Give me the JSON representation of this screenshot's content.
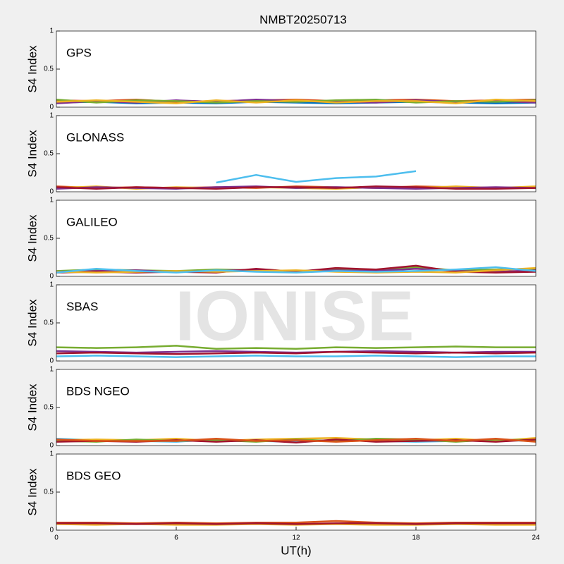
{
  "title": "NMBT20250713",
  "xlabel": "UT(h)",
  "watermark": "IONISE",
  "chart_data": [
    {
      "type": "line",
      "annotation": "GPS",
      "ylabel": "S4 Index",
      "xlim": [
        0,
        24
      ],
      "ylim": [
        0,
        1
      ],
      "yticks": [
        0,
        0.5,
        1
      ],
      "x": [
        0,
        2,
        4,
        6,
        8,
        10,
        12,
        14,
        16,
        18,
        20,
        22,
        24
      ],
      "series": [
        {
          "color": "#0072BD",
          "values": [
            0.06,
            0.07,
            0.05,
            0.06,
            0.05,
            0.07,
            0.06,
            0.05,
            0.06,
            0.07,
            0.06,
            0.05,
            0.06
          ]
        },
        {
          "color": "#D95319",
          "values": [
            0.09,
            0.08,
            0.1,
            0.07,
            0.08,
            0.09,
            0.1,
            0.08,
            0.09,
            0.1,
            0.08,
            0.09,
            0.1
          ]
        },
        {
          "color": "#7E2F8E",
          "values": [
            0.05,
            0.08,
            0.06,
            0.09,
            0.07,
            0.1,
            0.08,
            0.07,
            0.06,
            0.09,
            0.07,
            0.08,
            0.06
          ]
        },
        {
          "color": "#77AC30",
          "values": [
            0.1,
            0.06,
            0.09,
            0.08,
            0.06,
            0.08,
            0.07,
            0.09,
            0.1,
            0.06,
            0.08,
            0.07,
            0.09
          ]
        },
        {
          "color": "#EDB120",
          "values": [
            0.07,
            0.09,
            0.07,
            0.05,
            0.09,
            0.06,
            0.09,
            0.06,
            0.08,
            0.08,
            0.05,
            0.1,
            0.08
          ]
        }
      ]
    },
    {
      "type": "line",
      "annotation": "GLONASS",
      "ylabel": "S4 Index",
      "xlim": [
        0,
        24
      ],
      "ylim": [
        0,
        1
      ],
      "yticks": [
        0,
        0.5,
        1
      ],
      "x": [
        0,
        2,
        4,
        6,
        8,
        10,
        12,
        14,
        16,
        18,
        20,
        22,
        24
      ],
      "series": [
        {
          "color": "#4DBEEE",
          "values": [
            null,
            null,
            null,
            null,
            0.12,
            0.22,
            0.13,
            0.18,
            0.2,
            0.27,
            null,
            null,
            0.06
          ]
        },
        {
          "color": "#D95319",
          "values": [
            0.07,
            0.05,
            0.06,
            0.05,
            0.06,
            0.05,
            0.07,
            0.06,
            0.05,
            0.07,
            0.06,
            0.05,
            0.06
          ]
        },
        {
          "color": "#EDB120",
          "values": [
            0.05,
            0.07,
            0.04,
            0.06,
            0.05,
            0.06,
            0.05,
            0.04,
            0.06,
            0.05,
            0.07,
            0.05,
            0.07
          ]
        },
        {
          "color": "#7E2F8E",
          "values": [
            0.04,
            0.06,
            0.05,
            0.04,
            0.06,
            0.07,
            0.05,
            0.06,
            0.05,
            0.04,
            0.05,
            0.06,
            0.05
          ]
        },
        {
          "color": "#A2142F",
          "values": [
            0.06,
            0.04,
            0.06,
            0.05,
            0.04,
            0.06,
            0.06,
            0.05,
            0.07,
            0.06,
            0.04,
            0.04,
            0.05
          ]
        }
      ]
    },
    {
      "type": "line",
      "annotation": "GALILEO",
      "ylabel": "S4 Index",
      "xlim": [
        0,
        24
      ],
      "ylim": [
        0,
        1
      ],
      "yticks": [
        0,
        0.5,
        1
      ],
      "x": [
        0,
        2,
        4,
        6,
        8,
        10,
        12,
        14,
        16,
        18,
        20,
        22,
        24
      ],
      "series": [
        {
          "color": "#77AC30",
          "values": [
            0.07,
            0.09,
            0.08,
            0.07,
            0.09,
            0.08,
            0.07,
            0.09,
            0.08,
            0.12,
            0.08,
            0.09,
            0.1
          ]
        },
        {
          "color": "#7E2F8E",
          "values": [
            0.06,
            0.07,
            0.08,
            0.06,
            0.07,
            0.09,
            0.06,
            0.08,
            0.07,
            0.1,
            0.07,
            0.06,
            0.08
          ]
        },
        {
          "color": "#A2142F",
          "values": [
            0.05,
            0.06,
            0.05,
            0.06,
            0.05,
            0.1,
            0.06,
            0.11,
            0.09,
            0.14,
            0.06,
            0.05,
            0.06
          ]
        },
        {
          "color": "#EDB120",
          "values": [
            0.06,
            0.05,
            0.06,
            0.07,
            0.06,
            0.07,
            0.08,
            0.06,
            0.05,
            0.06,
            0.05,
            0.08,
            0.11
          ]
        },
        {
          "color": "#4DBEEE",
          "values": [
            0.05,
            0.1,
            0.07,
            0.05,
            0.08,
            0.06,
            0.05,
            0.07,
            0.06,
            0.07,
            0.09,
            0.12,
            0.07
          ]
        }
      ]
    },
    {
      "type": "line",
      "annotation": "SBAS",
      "ylabel": "S4 Index",
      "xlim": [
        0,
        24
      ],
      "ylim": [
        0,
        1
      ],
      "yticks": [
        0,
        0.5,
        1
      ],
      "x": [
        0,
        2,
        4,
        6,
        8,
        10,
        12,
        14,
        16,
        18,
        20,
        22,
        24
      ],
      "series": [
        {
          "color": "#4DBEEE",
          "values": [
            0.06,
            0.07,
            0.06,
            0.05,
            0.06,
            0.07,
            0.06,
            0.06,
            0.07,
            0.06,
            0.05,
            0.06,
            0.06
          ]
        },
        {
          "color": "#77AC30",
          "values": [
            0.18,
            0.17,
            0.18,
            0.2,
            0.16,
            0.17,
            0.16,
            0.18,
            0.17,
            0.18,
            0.19,
            0.18,
            0.18
          ]
        },
        {
          "color": "#7E2F8E",
          "values": [
            0.13,
            0.12,
            0.11,
            0.12,
            0.13,
            0.12,
            0.11,
            0.12,
            0.13,
            0.12,
            0.11,
            0.12,
            0.12
          ]
        },
        {
          "color": "#A2142F",
          "values": [
            0.1,
            0.11,
            0.1,
            0.09,
            0.1,
            0.11,
            0.1,
            0.12,
            0.11,
            0.1,
            0.11,
            0.1,
            0.11
          ]
        }
      ]
    },
    {
      "type": "line",
      "annotation": "BDS NGEO",
      "ylabel": "S4 Index",
      "xlim": [
        0,
        24
      ],
      "ylim": [
        0,
        1
      ],
      "yticks": [
        0,
        0.5,
        1
      ],
      "x": [
        0,
        2,
        4,
        6,
        8,
        10,
        12,
        14,
        16,
        18,
        20,
        22,
        24
      ],
      "series": [
        {
          "color": "#4DBEEE",
          "values": [
            0.09,
            0.07,
            0.06,
            0.05,
            0.08,
            0.06,
            0.05,
            0.07,
            0.06,
            0.05,
            0.06,
            0.07,
            0.06
          ]
        },
        {
          "color": "#EDB120",
          "values": [
            0.07,
            0.08,
            0.07,
            0.09,
            0.06,
            0.08,
            0.09,
            0.1,
            0.08,
            0.07,
            0.09,
            0.06,
            0.1
          ]
        },
        {
          "color": "#77AC30",
          "values": [
            0.06,
            0.05,
            0.08,
            0.06,
            0.07,
            0.05,
            0.08,
            0.06,
            0.09,
            0.08,
            0.05,
            0.08,
            0.07
          ]
        },
        {
          "color": "#A2142F",
          "values": [
            0.05,
            0.06,
            0.05,
            0.07,
            0.05,
            0.07,
            0.04,
            0.08,
            0.05,
            0.06,
            0.07,
            0.05,
            0.08
          ]
        },
        {
          "color": "#D95319",
          "values": [
            0.08,
            0.06,
            0.06,
            0.06,
            0.09,
            0.06,
            0.07,
            0.05,
            0.07,
            0.09,
            0.06,
            0.09,
            0.05
          ]
        }
      ]
    },
    {
      "type": "line",
      "annotation": "BDS GEO",
      "ylabel": "S4 Index",
      "xlim": [
        0,
        24
      ],
      "ylim": [
        0,
        1
      ],
      "yticks": [
        0,
        0.5,
        1
      ],
      "xticks": [
        0,
        6,
        12,
        18,
        24
      ],
      "x": [
        0,
        2,
        4,
        6,
        8,
        10,
        12,
        14,
        16,
        18,
        20,
        22,
        24
      ],
      "series": [
        {
          "color": "#EDB120",
          "values": [
            0.08,
            0.07,
            0.08,
            0.07,
            0.07,
            0.08,
            0.07,
            0.08,
            0.07,
            0.07,
            0.08,
            0.07,
            0.07
          ]
        },
        {
          "color": "#D95319",
          "values": [
            0.1,
            0.1,
            0.09,
            0.1,
            0.09,
            0.1,
            0.1,
            0.12,
            0.1,
            0.09,
            0.1,
            0.1,
            0.1
          ]
        },
        {
          "color": "#A2142F",
          "values": [
            0.09,
            0.09,
            0.08,
            0.09,
            0.08,
            0.09,
            0.08,
            0.09,
            0.09,
            0.08,
            0.09,
            0.09,
            0.09
          ]
        }
      ]
    }
  ]
}
